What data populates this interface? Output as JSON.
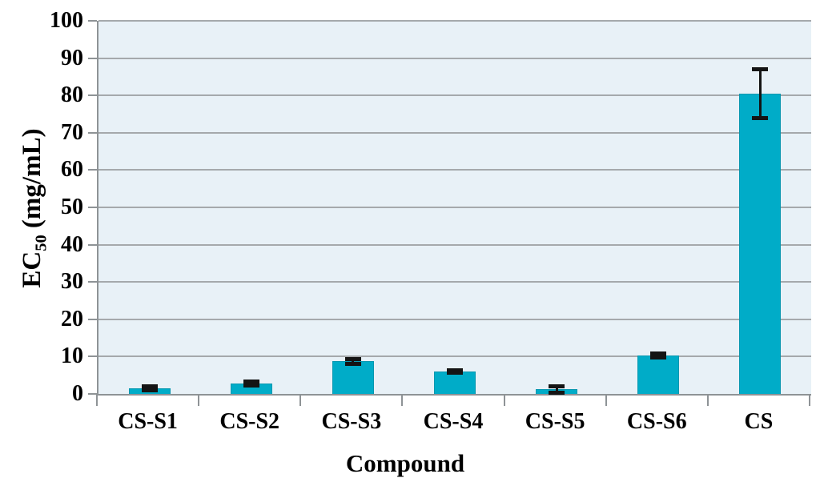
{
  "chart_data": {
    "type": "bar",
    "title": "",
    "xlabel": "Compound",
    "ylabel": "EC50 (mg/mL)",
    "ylabel_parts": {
      "prefix": "EC",
      "sub": "50",
      "suffix": " (mg/mL)"
    },
    "categories": [
      "CS-S1",
      "CS-S2",
      "CS-S3",
      "CS-S4",
      "CS-S5",
      "CS-S6",
      "CS"
    ],
    "series": [
      {
        "name": "EC50",
        "values": [
          1.5,
          2.8,
          8.7,
          6.0,
          1.2,
          10.3,
          80.5
        ],
        "errors": [
          0.5,
          0.5,
          0.6,
          0.3,
          0.9,
          0.5,
          6.5
        ]
      }
    ],
    "ylim": [
      0,
      100
    ],
    "yticks": [
      0,
      10,
      20,
      30,
      40,
      50,
      60,
      70,
      80,
      90,
      100
    ],
    "grid": "horizontal",
    "legend": "none",
    "colors": {
      "bar_fill": "#00ACC8",
      "bar_border": "#0897AF",
      "error_bar": "#141414",
      "plot_background": "#E8F1F7",
      "gridline": "#A5A9AC",
      "axis": "#8E9396",
      "text": "#000000",
      "figure_background": "#FFFFFF"
    }
  }
}
